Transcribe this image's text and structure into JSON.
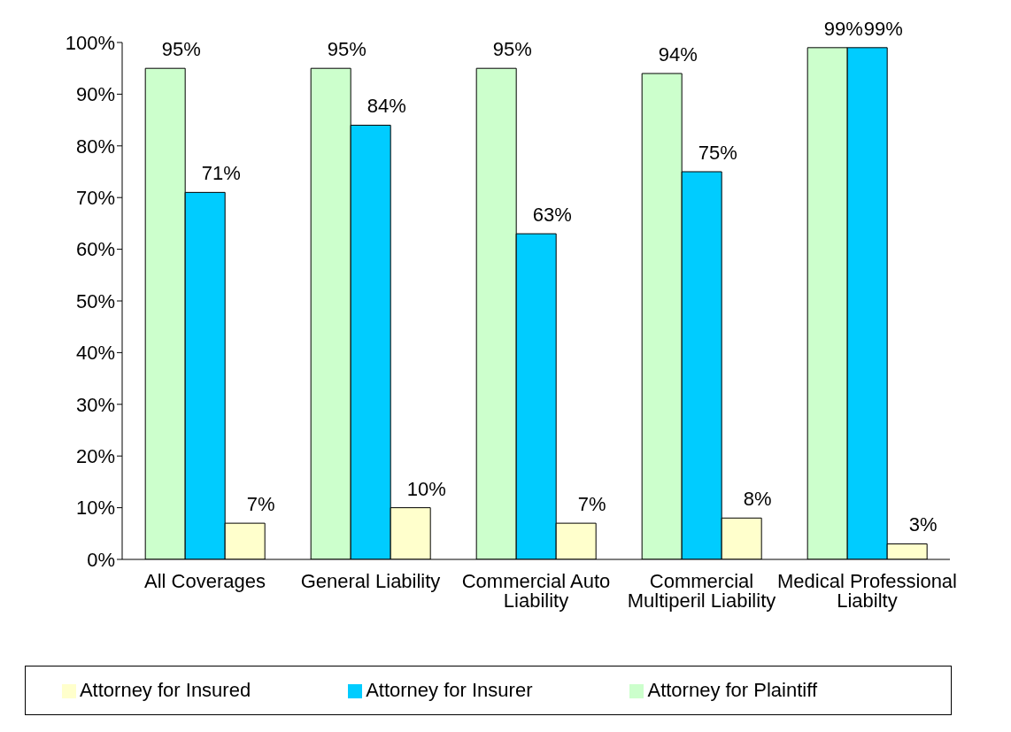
{
  "chart_data": {
    "type": "bar",
    "categories": [
      "All Coverages",
      "General Liability",
      "Commercial Auto Liability",
      "Commercial Multiperil Liability",
      "Medical Professional Liabilty"
    ],
    "series": [
      {
        "name": "Attorney for Plaintiff",
        "color": "#ccffcc",
        "values": [
          95,
          95,
          95,
          94,
          99
        ],
        "value_labels": [
          "95%",
          "95%",
          "95%",
          "94%",
          "99%"
        ]
      },
      {
        "name": "Attorney for Insurer",
        "color": "#00ccff",
        "values": [
          71,
          84,
          63,
          75,
          99
        ],
        "value_labels": [
          "71%",
          "84%",
          "63%",
          "75%",
          "99%"
        ]
      },
      {
        "name": "Attorney for Insured",
        "color": "#ffffcc",
        "values": [
          7,
          10,
          7,
          8,
          3
        ],
        "value_labels": [
          "7%",
          "10%",
          "7%",
          "8%",
          "3%"
        ]
      }
    ],
    "ylim": [
      0,
      100
    ],
    "yticks": [
      {
        "value": 0,
        "label": "0%"
      },
      {
        "value": 10,
        "label": "10%"
      },
      {
        "value": 20,
        "label": "20%"
      },
      {
        "value": 30,
        "label": "30%"
      },
      {
        "value": 40,
        "label": "40%"
      },
      {
        "value": 50,
        "label": "50%"
      },
      {
        "value": 60,
        "label": "60%"
      },
      {
        "value": 70,
        "label": "70%"
      },
      {
        "value": 80,
        "label": "80%"
      },
      {
        "value": 90,
        "label": "90%"
      },
      {
        "value": 100,
        "label": "100%"
      }
    ],
    "grid": false,
    "legend": "bottom"
  }
}
